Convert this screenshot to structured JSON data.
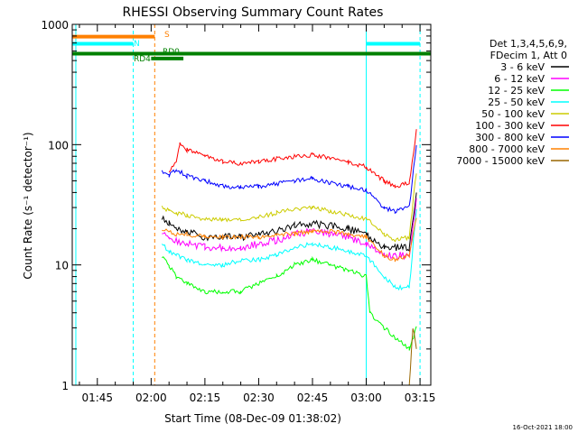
{
  "chart_data": {
    "type": "line",
    "title": "RHESSI Observing Summary Count Rates",
    "xlabel": "Start Time (08-Dec-09 01:38:02)",
    "ylabel": "Count Rate (s⁻¹ detector⁻¹)",
    "y_scale": "log",
    "ylim": [
      1,
      1000
    ],
    "xlim": [
      "01:38",
      "03:18"
    ],
    "x_ticks": [
      "01:45",
      "02:00",
      "02:15",
      "02:30",
      "02:45",
      "03:00",
      "03:15"
    ],
    "y_ticks": [
      "1",
      "10",
      "100",
      "1000"
    ],
    "footer": "16-Oct-2021 18:00",
    "legend_header": [
      "Det 1,3,4,5,6,9,",
      "FDecim 1, Att 0"
    ],
    "legend_position": "right",
    "series": [
      {
        "name": "3 - 6 keV",
        "color": "#000000",
        "x": [
          "02:03",
          "02:05",
          "02:07",
          "02:10",
          "02:15",
          "02:20",
          "02:25",
          "02:30",
          "02:35",
          "02:40",
          "02:45",
          "02:50",
          "02:55",
          "03:00",
          "03:05",
          "03:08",
          "03:12",
          "03:14"
        ],
        "y": [
          25,
          22,
          20,
          19,
          17,
          17,
          17,
          18,
          19,
          21,
          22,
          21,
          20,
          18,
          14,
          14,
          14,
          40
        ]
      },
      {
        "name": "6 - 12 keV",
        "color": "#ff00ff",
        "x": [
          "02:03",
          "02:05",
          "02:07",
          "02:10",
          "02:15",
          "02:20",
          "02:25",
          "02:30",
          "02:35",
          "02:40",
          "02:45",
          "02:50",
          "02:55",
          "03:00",
          "03:05",
          "03:08",
          "03:12",
          "03:14"
        ],
        "y": [
          18,
          17,
          16,
          15,
          14,
          14,
          14,
          15,
          16,
          18,
          19,
          18,
          17,
          15,
          12,
          12,
          12,
          35
        ]
      },
      {
        "name": "12 - 25 keV",
        "color": "#00ff00",
        "x": [
          "02:03",
          "02:05",
          "02:07",
          "02:10",
          "02:15",
          "02:20",
          "02:25",
          "02:30",
          "02:35",
          "02:40",
          "02:45",
          "02:50",
          "02:55",
          "03:00",
          "03:01",
          "03:05",
          "03:08",
          "03:12",
          "03:14"
        ],
        "y": [
          12,
          10,
          8,
          7,
          6,
          6,
          6,
          7,
          8,
          10,
          11,
          10,
          9,
          8,
          4,
          3,
          2.5,
          2,
          3
        ]
      },
      {
        "name": "25 - 50 keV",
        "color": "#00ffff",
        "x": [
          "02:03",
          "02:05",
          "02:07",
          "02:10",
          "02:15",
          "02:20",
          "02:25",
          "02:30",
          "02:35",
          "02:40",
          "02:45",
          "02:50",
          "02:55",
          "03:00",
          "03:05",
          "03:08",
          "03:12",
          "03:14"
        ],
        "y": [
          15,
          13,
          12,
          11,
          10,
          10,
          11,
          11,
          12,
          14,
          15,
          14,
          13,
          12,
          8,
          6.5,
          6.5,
          30
        ]
      },
      {
        "name": "50 - 100 keV",
        "color": "#cccc00",
        "x": [
          "02:03",
          "02:05",
          "02:07",
          "02:10",
          "02:15",
          "02:20",
          "02:25",
          "02:30",
          "02:35",
          "02:40",
          "02:45",
          "02:50",
          "02:55",
          "03:00",
          "03:05",
          "03:08",
          "03:12",
          "03:14"
        ],
        "y": [
          30,
          28,
          27,
          26,
          24,
          24,
          24,
          25,
          27,
          29,
          30,
          28,
          26,
          24,
          18,
          16,
          17,
          60
        ]
      },
      {
        "name": "100 - 300 keV",
        "color": "#ff0000",
        "x": [
          "02:05",
          "02:07",
          "02:08",
          "02:10",
          "02:15",
          "02:20",
          "02:25",
          "02:30",
          "02:35",
          "02:40",
          "02:45",
          "02:50",
          "02:55",
          "03:00",
          "03:05",
          "03:08",
          "03:12",
          "03:14"
        ],
        "y": [
          60,
          70,
          100,
          90,
          80,
          72,
          70,
          72,
          76,
          80,
          82,
          78,
          72,
          65,
          50,
          45,
          48,
          130
        ]
      },
      {
        "name": "300 - 800 keV",
        "color": "#0000ff",
        "x": [
          "02:03",
          "02:05",
          "02:07",
          "02:10",
          "02:15",
          "02:20",
          "02:25",
          "02:30",
          "02:35",
          "02:40",
          "02:45",
          "02:50",
          "02:55",
          "03:00",
          "03:05",
          "03:08",
          "03:12",
          "03:14"
        ],
        "y": [
          60,
          55,
          62,
          55,
          50,
          45,
          44,
          45,
          47,
          50,
          52,
          48,
          45,
          42,
          30,
          28,
          30,
          100
        ]
      },
      {
        "name": "800 - 7000 keV",
        "color": "#ff8000",
        "x": [
          "02:03",
          "02:05",
          "02:07",
          "02:10",
          "02:15",
          "02:20",
          "02:25",
          "02:30",
          "02:35",
          "02:40",
          "02:45",
          "02:50",
          "02:55",
          "03:00",
          "03:05",
          "03:08",
          "03:12",
          "03:14"
        ],
        "y": [
          20,
          19,
          18,
          18,
          17,
          17,
          17,
          17,
          18,
          18,
          19,
          19,
          18,
          17,
          12,
          11,
          12,
          25
        ]
      },
      {
        "name": "7000 - 15000 keV",
        "color": "#996600",
        "x": [
          "03:12",
          "03:13",
          "03:14"
        ],
        "y": [
          1,
          3,
          2
        ]
      }
    ],
    "annotations": [
      {
        "label": "S",
        "color": "#ff8000"
      },
      {
        "label": "N",
        "color": "#00ffff"
      },
      {
        "label": "RD4",
        "color": "#008000"
      },
      {
        "label": "RD0",
        "color": "#008000"
      }
    ],
    "flag_bars": [
      {
        "color": "#ff8000",
        "x": [
          "01:38",
          "02:01"
        ],
        "y": 790
      },
      {
        "color": "#00ffff",
        "x": [
          "01:38",
          "01:55"
        ],
        "y": 690
      },
      {
        "color": "#00ffff",
        "x": [
          "03:00",
          "03:15"
        ],
        "y": 690
      },
      {
        "color": "#008000",
        "x": [
          "01:38",
          "03:18"
        ],
        "y": 570
      },
      {
        "color": "#008000",
        "x": [
          "02:00",
          "02:09"
        ],
        "y": 520
      }
    ],
    "vertical_markers": [
      {
        "x": "01:39",
        "color": "#00ffff",
        "style": "solid"
      },
      {
        "x": "01:55",
        "color": "#00ffff",
        "style": "dashed"
      },
      {
        "x": "02:01",
        "color": "#ff8000",
        "style": "dashed"
      },
      {
        "x": "03:00",
        "color": "#00ffff",
        "style": "solid"
      },
      {
        "x": "03:15",
        "color": "#00ffff",
        "style": "dashed"
      }
    ]
  }
}
